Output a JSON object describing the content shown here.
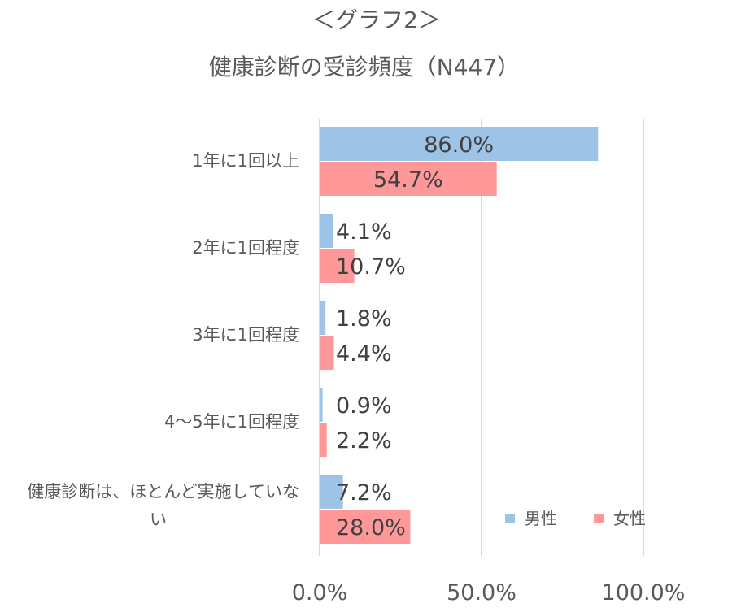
{
  "chart_data": {
    "type": "bar",
    "orientation": "horizontal",
    "title": "＜グラフ2＞",
    "subtitle": "健康診断の受診頻度（N447）",
    "categories": [
      "1年に1回以上",
      "2年に1回程度",
      "3年に1回程度",
      "4～5年に1回程度",
      "健康診断は、ほとんど実施していない"
    ],
    "series": [
      {
        "name": "男性",
        "values": [
          86.0,
          4.1,
          1.8,
          0.9,
          7.2
        ],
        "labels": [
          "86.0%",
          "4.1%",
          "1.8%",
          "0.9%",
          "7.2%"
        ]
      },
      {
        "name": "女性",
        "values": [
          54.7,
          10.7,
          4.4,
          2.2,
          28.0
        ],
        "labels": [
          "54.7%",
          "10.7%",
          "4.4%",
          "2.2%",
          "28.0%"
        ]
      }
    ],
    "xlim": [
      0,
      100
    ],
    "xticks": [
      0,
      50,
      100
    ],
    "xtick_labels": [
      "0.0%",
      "50.0%",
      "100.0%"
    ],
    "grid": true,
    "legend_position": "bottom-right",
    "colors": {
      "男性": "#9DC3E6",
      "女性": "#FF9999",
      "grid": "#D9D9D9"
    }
  }
}
